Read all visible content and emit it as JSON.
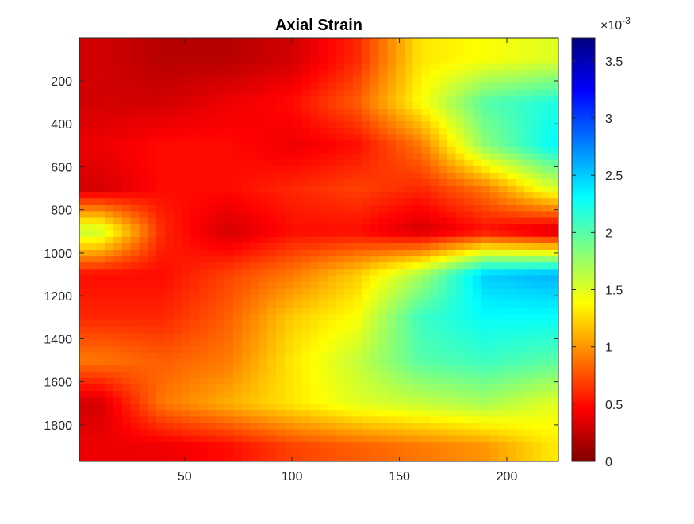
{
  "chart_data": {
    "type": "heatmap",
    "title": "Axial Strain",
    "xlabel": "",
    "ylabel": "",
    "colormap": "jet",
    "colormap_stops": [
      "#800000",
      "#ff0000",
      "#ffff00",
      "#00ffff",
      "#0000ff",
      "#000080"
    ],
    "x_range": [
      1,
      224
    ],
    "y_range": [
      1,
      1970
    ],
    "y_reversed": true,
    "x_ticks": [
      50,
      100,
      150,
      200
    ],
    "x_tick_labels": [
      "50",
      "100",
      "150",
      "200"
    ],
    "y_ticks": [
      200,
      400,
      600,
      800,
      1000,
      1200,
      1400,
      1600,
      1800
    ],
    "y_tick_labels": [
      "200",
      "400",
      "600",
      "800",
      "1000",
      "1200",
      "1400",
      "1600",
      "1800"
    ],
    "colorbar": {
      "range": [
        0,
        3.7
      ],
      "ticks": [
        0,
        0.5,
        1,
        1.5,
        2,
        2.5,
        3,
        3.5
      ],
      "tick_labels": [
        "0",
        "0.5",
        "1",
        "1.5",
        "2",
        "2.5",
        "3",
        "3.5"
      ],
      "exponent_prefix": "×10",
      "exponent": "-3"
    },
    "approx_grid": {
      "note_columns_x": [
        10,
        40,
        70,
        100,
        130,
        160,
        190,
        220
      ],
      "rows_y": [
        100,
        300,
        500,
        700,
        900,
        1100,
        1300,
        1500,
        1700,
        1900
      ],
      "values_e-3": [
        [
          0.3,
          0.2,
          0.2,
          0.3,
          0.6,
          1.3,
          1.4,
          1.5
        ],
        [
          0.3,
          0.3,
          0.4,
          0.5,
          0.8,
          1.4,
          2.0,
          2.2
        ],
        [
          0.4,
          0.5,
          0.5,
          0.4,
          0.5,
          0.9,
          1.8,
          2.3
        ],
        [
          0.3,
          0.5,
          0.5,
          0.6,
          0.7,
          0.6,
          0.9,
          1.5
        ],
        [
          1.6,
          0.6,
          0.3,
          0.5,
          0.5,
          0.3,
          0.5,
          0.3
        ],
        [
          0.5,
          0.5,
          0.7,
          0.9,
          1.2,
          1.7,
          2.5,
          2.6
        ],
        [
          0.6,
          0.6,
          0.8,
          1.2,
          1.4,
          2.1,
          2.3,
          2.3
        ],
        [
          0.9,
          0.8,
          0.9,
          1.3,
          1.6,
          2.0,
          2.1,
          2.0
        ],
        [
          0.3,
          0.9,
          1.1,
          1.3,
          1.5,
          1.6,
          1.7,
          1.5
        ],
        [
          0.4,
          0.4,
          0.5,
          0.7,
          0.8,
          0.9,
          1.0,
          1.3
        ]
      ]
    }
  }
}
